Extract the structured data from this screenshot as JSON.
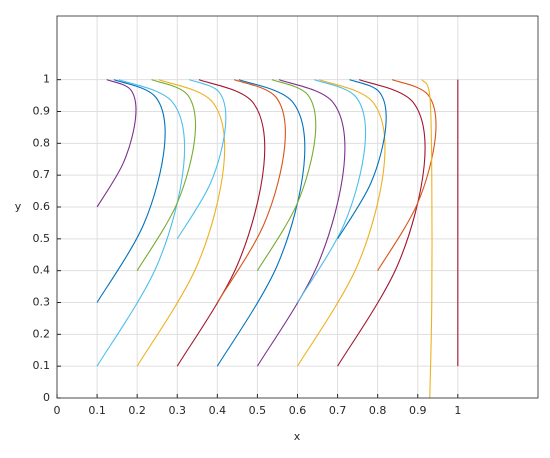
{
  "chart_data": {
    "type": "line",
    "xlabel": "x",
    "ylabel": "y",
    "xlim": [
      0,
      1.2
    ],
    "ylim": [
      0,
      1.2
    ],
    "xticks": [
      0,
      0.1,
      0.2,
      0.3,
      0.4,
      0.5,
      0.6,
      0.7,
      0.8,
      0.9,
      1
    ],
    "yticks": [
      0,
      0.1,
      0.2,
      0.3,
      0.4,
      0.5,
      0.6,
      0.7,
      0.8,
      0.9,
      1
    ],
    "grid": true,
    "series": [
      {
        "color": "#4DBEEE",
        "x": [
          0.1,
          0.249,
          0.316,
          0.289,
          0.154
        ],
        "values": [
          0.1,
          0.415,
          0.73,
          0.928,
          1
        ]
      },
      {
        "color": "#0072BD",
        "x": [
          0.1,
          0.216,
          0.268,
          0.247,
          0.142
        ],
        "values": [
          0.3,
          0.545,
          0.79,
          0.944,
          1
        ]
      },
      {
        "color": "#7E2F8E",
        "x": [
          0.1,
          0.166,
          0.196,
          0.184,
          0.124
        ],
        "values": [
          0.6,
          0.74,
          0.88,
          0.968,
          1
        ]
      },
      {
        "color": "#EDB120",
        "x": [
          0.2,
          0.349,
          0.416,
          0.389,
          0.254
        ],
        "values": [
          0.1,
          0.415,
          0.73,
          0.928,
          1
        ]
      },
      {
        "color": "#77AC30",
        "x": [
          0.2,
          0.299,
          0.344,
          0.326,
          0.236
        ],
        "values": [
          0.4,
          0.61,
          0.82,
          0.952,
          1
        ]
      },
      {
        "color": "#A2142F",
        "x": [
          0.3,
          0.449,
          0.516,
          0.489,
          0.354
        ],
        "values": [
          0.1,
          0.415,
          0.73,
          0.928,
          1
        ]
      },
      {
        "color": "#4DBEEE",
        "x": [
          0.3,
          0.383,
          0.42,
          0.405,
          0.33
        ],
        "values": [
          0.5,
          0.675,
          0.85,
          0.96,
          1
        ]
      },
      {
        "color": "#0072BD",
        "x": [
          0.4,
          0.549,
          0.616,
          0.589,
          0.454
        ],
        "values": [
          0.1,
          0.415,
          0.73,
          0.928,
          1
        ]
      },
      {
        "color": "#D95319",
        "x": [
          0.4,
          0.516,
          0.568,
          0.547,
          0.442
        ],
        "values": [
          0.3,
          0.545,
          0.79,
          0.944,
          1
        ]
      },
      {
        "color": "#7E2F8E",
        "x": [
          0.5,
          0.649,
          0.716,
          0.689,
          0.554
        ],
        "values": [
          0.1,
          0.415,
          0.73,
          0.928,
          1
        ]
      },
      {
        "color": "#77AC30",
        "x": [
          0.5,
          0.599,
          0.644,
          0.626,
          0.536
        ],
        "values": [
          0.4,
          0.61,
          0.82,
          0.952,
          1
        ]
      },
      {
        "color": "#EDB120",
        "x": [
          0.6,
          0.749,
          0.816,
          0.789,
          0.654
        ],
        "values": [
          0.1,
          0.415,
          0.73,
          0.928,
          1
        ]
      },
      {
        "color": "#4DBEEE",
        "x": [
          0.6,
          0.716,
          0.768,
          0.747,
          0.642
        ],
        "values": [
          0.3,
          0.545,
          0.79,
          0.944,
          1
        ]
      },
      {
        "color": "#A2142F",
        "x": [
          0.7,
          0.849,
          0.916,
          0.889,
          0.754
        ],
        "values": [
          0.1,
          0.415,
          0.73,
          0.928,
          1
        ]
      },
      {
        "color": "#0072BD",
        "x": [
          0.7,
          0.783,
          0.82,
          0.805,
          0.73
        ],
        "values": [
          0.5,
          0.675,
          0.85,
          0.96,
          1
        ]
      },
      {
        "color": "#D95319",
        "x": [
          0.8,
          0.899,
          0.944,
          0.926,
          0.836
        ],
        "values": [
          0.4,
          0.61,
          0.82,
          0.952,
          1
        ]
      },
      {
        "color": "#EDB120",
        "x": [
          0.93,
          0.935,
          0.935,
          0.93,
          0.91
        ],
        "values": [
          0,
          0.3,
          0.7,
          0.95,
          1
        ]
      },
      {
        "color": "#A2142F",
        "x": [
          1,
          1
        ],
        "values": [
          0.1,
          1
        ]
      }
    ]
  }
}
